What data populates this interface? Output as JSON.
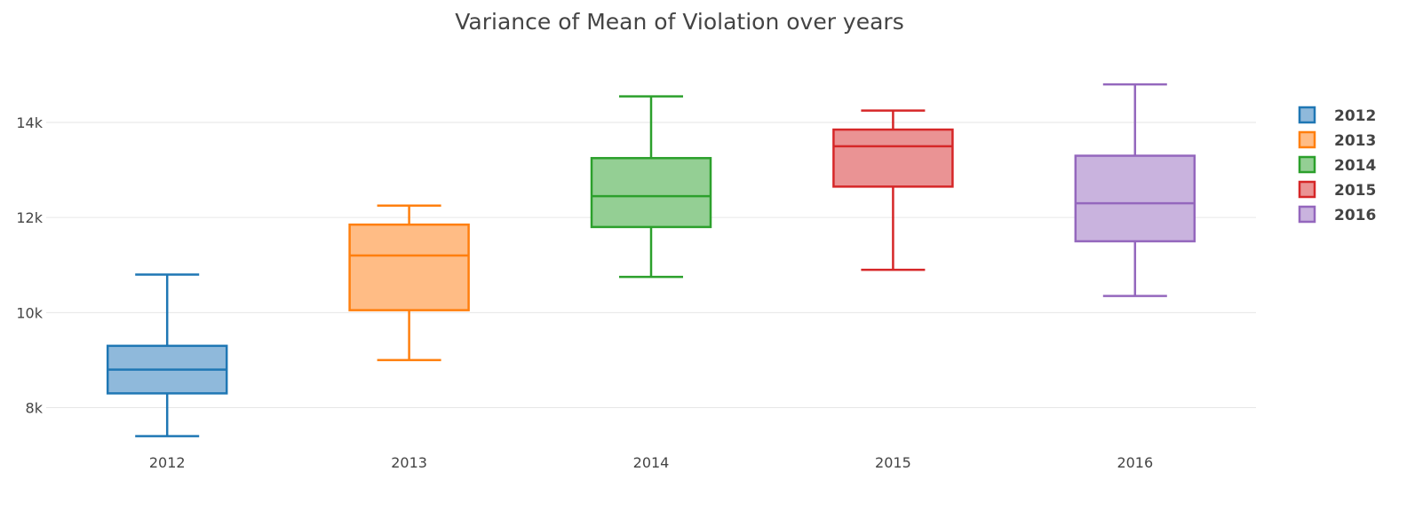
{
  "chart_data": {
    "type": "box",
    "title": "Variance of Mean of Violation over years",
    "xlabel": "",
    "ylabel": "",
    "categories": [
      "2012",
      "2013",
      "2014",
      "2015",
      "2016"
    ],
    "ylim": [
      7150,
      15550
    ],
    "yticks": [
      8000,
      10000,
      12000,
      14000
    ],
    "ytick_labels": [
      "8k",
      "10k",
      "12k",
      "14k"
    ],
    "grid": true,
    "legend_position": "right",
    "series": [
      {
        "name": "2012",
        "color": "#1f77b4",
        "fill": "#8fb9db",
        "min": 7400,
        "q1": 8300,
        "median": 8800,
        "q3": 9300,
        "max": 10800
      },
      {
        "name": "2013",
        "color": "#ff7f0e",
        "fill": "#ffbc85",
        "min": 9000,
        "q1": 10050,
        "median": 11200,
        "q3": 11850,
        "max": 12250
      },
      {
        "name": "2014",
        "color": "#2ca02c",
        "fill": "#94cf94",
        "min": 10750,
        "q1": 11800,
        "median": 12450,
        "q3": 13250,
        "max": 14550
      },
      {
        "name": "2015",
        "color": "#d62728",
        "fill": "#ea9394",
        "min": 10900,
        "q1": 12650,
        "median": 13500,
        "q3": 13850,
        "max": 14250
      },
      {
        "name": "2016",
        "color": "#9467bd",
        "fill": "#c9b3de",
        "min": 10350,
        "q1": 11500,
        "median": 12300,
        "q3": 13300,
        "max": 14800
      }
    ]
  }
}
